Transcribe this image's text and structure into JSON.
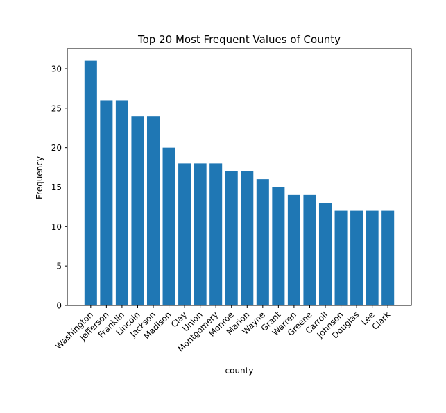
{
  "chart_data": {
    "type": "bar",
    "title": "Top 20 Most Frequent Values of County",
    "xlabel": "county",
    "ylabel": "Frequency",
    "categories": [
      "Washington",
      "Jefferson",
      "Franklin",
      "Lincoln",
      "Jackson",
      "Madison",
      "Clay",
      "Union",
      "Montgomery",
      "Monroe",
      "Marion",
      "Wayne",
      "Grant",
      "Warren",
      "Greene",
      "Carroll",
      "Johnson",
      "Douglas",
      "Lee",
      "Clark"
    ],
    "values": [
      31,
      26,
      26,
      24,
      24,
      20,
      18,
      18,
      18,
      17,
      17,
      16,
      15,
      14,
      14,
      13,
      12,
      12,
      12,
      12
    ],
    "ylim": [
      0,
      32.55
    ],
    "yticks": [
      0,
      5,
      10,
      15,
      20,
      25,
      30
    ],
    "grid": false,
    "bar_color": "#1f77b4"
  }
}
